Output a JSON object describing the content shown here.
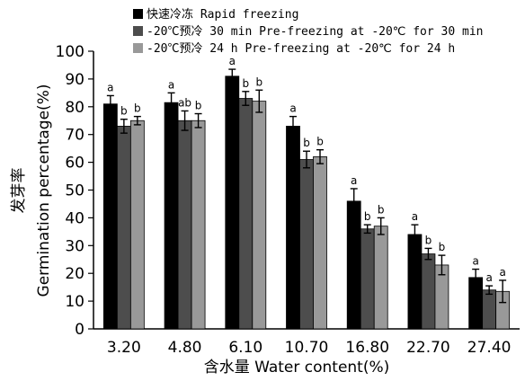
{
  "chart_data": {
    "type": "bar",
    "ylabel_cn": "发芽率",
    "ylabel": "Germination percentage(%)",
    "xlabel": "含水量 Water content(%)",
    "categories": [
      "3.20",
      "4.80",
      "6.10",
      "10.70",
      "16.80",
      "22.70",
      "27.40"
    ],
    "ylim": [
      0,
      100
    ],
    "yticks": [
      0,
      10,
      20,
      30,
      40,
      50,
      60,
      70,
      80,
      90,
      100
    ],
    "grid": false,
    "legend_position": "top-left",
    "series": [
      {
        "name": "快速冷冻 Rapid freezing",
        "color": "#000000",
        "values": [
          81,
          81.5,
          91,
          73,
          46,
          34,
          18.5
        ],
        "errors": [
          3,
          3.5,
          2.5,
          3.5,
          4.5,
          3.5,
          3
        ],
        "letters": [
          "a",
          "a",
          "a",
          "a",
          "a",
          "a",
          "a"
        ]
      },
      {
        "name": "-20℃预冷 30 min Pre-freezing at -20℃ for 30 min",
        "color": "#4d4d4d",
        "values": [
          73,
          75,
          83,
          61,
          36,
          27,
          14
        ],
        "errors": [
          2.5,
          3.5,
          2.5,
          3,
          1.5,
          2,
          1.5
        ],
        "letters": [
          "b",
          "ab",
          "b",
          "b",
          "b",
          "b",
          "a"
        ]
      },
      {
        "name": "-20℃预冷 24 h Pre-freezing at -20℃ for 24 h",
        "color": "#999999",
        "values": [
          75,
          75,
          82,
          62,
          37,
          23,
          13.5
        ],
        "errors": [
          1.5,
          2.5,
          4,
          2.5,
          3,
          3.5,
          4
        ],
        "letters": [
          "b",
          "b",
          "b",
          "b",
          "b",
          "b",
          "a"
        ]
      }
    ]
  }
}
